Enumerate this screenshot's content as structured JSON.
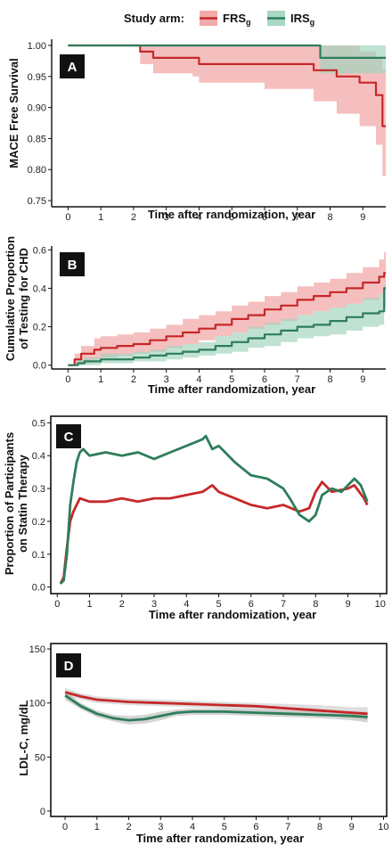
{
  "legend": {
    "title": "Study arm:",
    "entries": [
      {
        "base": "FRS",
        "sub": "g",
        "color": "#c62828",
        "fill": "#f2a9a9"
      },
      {
        "base": "IRS",
        "sub": "g",
        "color": "#2e7d5b",
        "fill": "#a8d8c3"
      }
    ]
  },
  "chart_data": [
    {
      "type": "line",
      "panel": "A",
      "xlabel": "Time after randomization, year",
      "ylabel": "MACE Free Survival",
      "xlim": [
        -0.5,
        9.7
      ],
      "ylim": [
        0.74,
        1.01
      ],
      "xticks": [
        0,
        1,
        2,
        3,
        4,
        5,
        6,
        7,
        8,
        9
      ],
      "yticks": [
        0.75,
        0.8,
        0.85,
        0.9,
        0.95,
        1.0
      ],
      "ytick_labels": [
        "0.75",
        "0.80",
        "0.85",
        "0.90",
        "0.95",
        "1.00"
      ],
      "step": true,
      "frame": "L",
      "series": [
        {
          "x": [
            0,
            2.2,
            2.6,
            3.8,
            4.0,
            6.0,
            7.5,
            8.2,
            8.9,
            9.4,
            9.6,
            9.7
          ],
          "y": [
            1.0,
            0.99,
            0.98,
            0.98,
            0.97,
            0.97,
            0.96,
            0.95,
            0.94,
            0.92,
            0.87,
            0.87
          ],
          "lo": [
            1.0,
            0.97,
            0.955,
            0.95,
            0.94,
            0.93,
            0.91,
            0.89,
            0.87,
            0.84,
            0.79,
            0.79
          ],
          "hi": [
            1.0,
            1.0,
            1.0,
            1.0,
            1.0,
            1.0,
            1.0,
            1.0,
            0.99,
            0.98,
            0.96,
            0.96
          ]
        },
        {
          "x": [
            0,
            7.7,
            9.7
          ],
          "y": [
            1.0,
            0.98,
            0.98
          ],
          "lo": [
            1.0,
            0.955,
            0.955
          ],
          "hi": [
            1.0,
            1.0,
            1.0
          ]
        }
      ]
    },
    {
      "type": "line",
      "panel": "B",
      "xlabel": "Time after randomization, year",
      "ylabel_lines": [
        "Cumulative Proportion",
        "of Testing for CHD"
      ],
      "xlim": [
        -0.5,
        9.7
      ],
      "ylim": [
        -0.02,
        0.62
      ],
      "xticks": [
        0,
        1,
        2,
        3,
        4,
        5,
        6,
        7,
        8,
        9
      ],
      "yticks": [
        0.0,
        0.2,
        0.4,
        0.6
      ],
      "ytick_labels": [
        "0.0",
        "0.2",
        "0.4",
        "0.6"
      ],
      "step": true,
      "frame": "L",
      "series": [
        {
          "x": [
            0,
            0.2,
            0.4,
            0.8,
            1.0,
            1.5,
            2.0,
            2.5,
            3.0,
            3.5,
            4.0,
            4.5,
            5.0,
            5.5,
            6.0,
            6.5,
            7.0,
            7.5,
            8.0,
            8.5,
            9.0,
            9.5,
            9.65,
            9.7
          ],
          "y": [
            0,
            0.03,
            0.06,
            0.08,
            0.09,
            0.1,
            0.11,
            0.13,
            0.15,
            0.17,
            0.19,
            0.21,
            0.24,
            0.26,
            0.29,
            0.31,
            0.34,
            0.36,
            0.38,
            0.4,
            0.43,
            0.46,
            0.48,
            0.48
          ],
          "lo": [
            0,
            0.0,
            0.01,
            0.03,
            0.04,
            0.05,
            0.06,
            0.07,
            0.09,
            0.11,
            0.13,
            0.15,
            0.17,
            0.19,
            0.21,
            0.23,
            0.26,
            0.28,
            0.3,
            0.32,
            0.34,
            0.37,
            0.39,
            0.39
          ],
          "hi": [
            0,
            0.06,
            0.1,
            0.14,
            0.15,
            0.16,
            0.17,
            0.19,
            0.21,
            0.24,
            0.26,
            0.28,
            0.31,
            0.33,
            0.36,
            0.38,
            0.41,
            0.43,
            0.45,
            0.48,
            0.51,
            0.55,
            0.59,
            0.59
          ]
        },
        {
          "x": [
            0,
            0.3,
            0.5,
            1.0,
            2.0,
            2.5,
            3.0,
            3.5,
            4.0,
            4.5,
            5.0,
            5.5,
            6.0,
            6.5,
            7.0,
            7.5,
            8.0,
            8.5,
            9.0,
            9.5,
            9.65,
            9.7
          ],
          "y": [
            0,
            0.01,
            0.02,
            0.03,
            0.04,
            0.05,
            0.06,
            0.07,
            0.08,
            0.1,
            0.12,
            0.14,
            0.16,
            0.18,
            0.2,
            0.21,
            0.23,
            0.25,
            0.27,
            0.28,
            0.4,
            0.4
          ],
          "lo": [
            0,
            0.0,
            0.0,
            0.01,
            0.02,
            0.02,
            0.03,
            0.04,
            0.05,
            0.06,
            0.07,
            0.09,
            0.1,
            0.12,
            0.14,
            0.15,
            0.16,
            0.18,
            0.2,
            0.21,
            0.3,
            0.3
          ],
          "hi": [
            0,
            0.03,
            0.04,
            0.06,
            0.07,
            0.08,
            0.1,
            0.11,
            0.12,
            0.15,
            0.17,
            0.2,
            0.22,
            0.24,
            0.26,
            0.28,
            0.3,
            0.32,
            0.35,
            0.37,
            0.42,
            0.42
          ]
        }
      ]
    },
    {
      "type": "line",
      "panel": "C",
      "xlabel": "Time after randomization, year",
      "ylabel_lines": [
        "Proportion of Participants",
        "on Statin Therapy"
      ],
      "xlim": [
        -0.2,
        10.2
      ],
      "ylim": [
        -0.02,
        0.52
      ],
      "xticks": [
        0,
        1,
        2,
        3,
        4,
        5,
        6,
        7,
        8,
        9,
        10
      ],
      "yticks": [
        0.0,
        0.1,
        0.2,
        0.3,
        0.4,
        0.5
      ],
      "ytick_labels": [
        "0.0",
        "0.1",
        "0.2",
        "0.3",
        "0.4",
        "0.5"
      ],
      "step": false,
      "frame": "box",
      "series": [
        {
          "x": [
            0.1,
            0.2,
            0.3,
            0.4,
            0.5,
            0.6,
            0.7,
            1.0,
            1.5,
            2.0,
            2.5,
            3.0,
            3.5,
            4.0,
            4.5,
            4.8,
            5.0,
            5.5,
            6.0,
            6.5,
            7.0,
            7.5,
            7.8,
            8.0,
            8.2,
            8.5,
            9.0,
            9.2,
            9.5,
            9.6
          ],
          "y": [
            0.01,
            0.03,
            0.12,
            0.2,
            0.23,
            0.25,
            0.27,
            0.26,
            0.26,
            0.27,
            0.26,
            0.27,
            0.27,
            0.28,
            0.29,
            0.31,
            0.29,
            0.27,
            0.25,
            0.24,
            0.25,
            0.23,
            0.24,
            0.29,
            0.32,
            0.29,
            0.3,
            0.31,
            0.27,
            0.25
          ]
        },
        {
          "x": [
            0.1,
            0.2,
            0.3,
            0.4,
            0.5,
            0.6,
            0.7,
            0.8,
            1.0,
            1.5,
            2.0,
            2.5,
            3.0,
            3.5,
            4.0,
            4.5,
            4.6,
            4.8,
            5.0,
            5.5,
            6.0,
            6.5,
            7.0,
            7.2,
            7.5,
            7.8,
            8.0,
            8.2,
            8.5,
            8.8,
            9.0,
            9.2,
            9.4,
            9.6
          ],
          "y": [
            0.01,
            0.02,
            0.1,
            0.25,
            0.32,
            0.38,
            0.41,
            0.42,
            0.4,
            0.41,
            0.4,
            0.41,
            0.39,
            0.41,
            0.43,
            0.45,
            0.46,
            0.42,
            0.43,
            0.38,
            0.34,
            0.33,
            0.3,
            0.27,
            0.22,
            0.2,
            0.22,
            0.28,
            0.3,
            0.29,
            0.31,
            0.33,
            0.31,
            0.26
          ]
        }
      ]
    },
    {
      "type": "line",
      "panel": "D",
      "xlabel": "Time after randomization, year",
      "ylabel": "LDL-C, mg/dL",
      "xlim": [
        -0.45,
        10.1
      ],
      "ylim": [
        -5,
        155
      ],
      "xticks": [
        0,
        1,
        2,
        3,
        4,
        5,
        6,
        7,
        8,
        9,
        10
      ],
      "yticks": [
        0,
        50,
        100,
        150
      ],
      "ytick_labels": [
        "0",
        "50",
        "100",
        "150"
      ],
      "step": false,
      "frame": "box",
      "series": [
        {
          "x": [
            0,
            0.5,
            1,
            2,
            3,
            4,
            5,
            6,
            7,
            8,
            9,
            9.5
          ],
          "y": [
            110,
            106,
            103,
            101,
            100,
            99,
            98,
            97,
            95,
            93,
            91,
            90
          ],
          "lo": [
            106,
            103,
            100,
            98,
            97,
            96,
            95,
            93,
            91,
            89,
            86,
            84
          ],
          "hi": [
            114,
            109,
            106,
            104,
            103,
            102,
            101,
            100,
            99,
            98,
            96,
            96
          ]
        },
        {
          "x": [
            0,
            0.5,
            1,
            1.5,
            2,
            2.5,
            3,
            3.5,
            4,
            5,
            6,
            7,
            8,
            9,
            9.5
          ],
          "y": [
            107,
            97,
            90,
            86,
            84,
            85,
            88,
            91,
            92,
            92,
            91,
            90,
            89,
            88,
            87
          ],
          "lo": [
            103,
            94,
            87,
            83,
            80,
            81,
            84,
            88,
            89,
            89,
            88,
            87,
            86,
            84,
            82
          ],
          "hi": [
            111,
            100,
            93,
            89,
            88,
            89,
            92,
            94,
            95,
            95,
            94,
            93,
            92,
            92,
            92
          ]
        }
      ]
    }
  ]
}
